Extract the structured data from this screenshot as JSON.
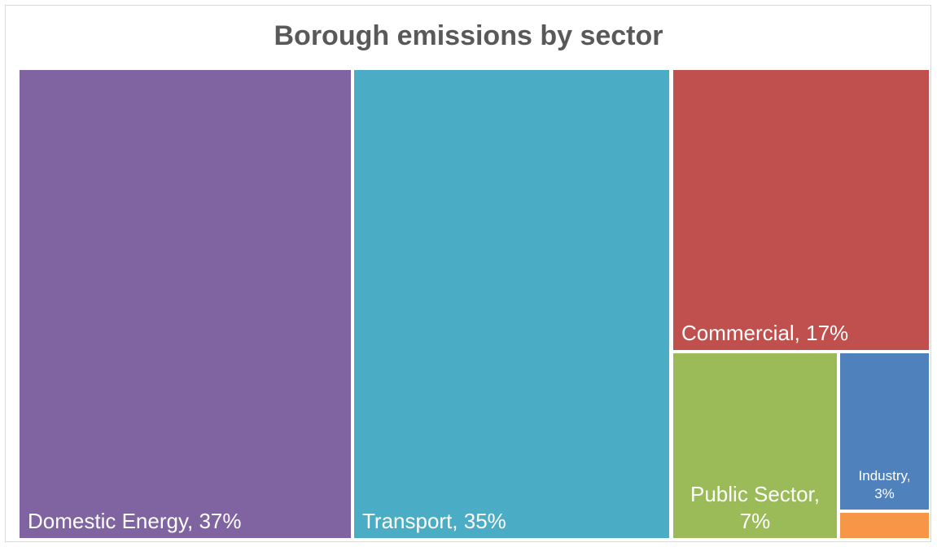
{
  "chart_data": {
    "type": "treemap",
    "title": "Borough emissions by sector",
    "data_labels": true,
    "items": [
      {
        "name": "Domestic Energy",
        "value": 37,
        "label": "Domestic Energy, 37%",
        "color": "#8064a2"
      },
      {
        "name": "Transport",
        "value": 35,
        "label": "Transport, 35%",
        "color": "#4bacc6"
      },
      {
        "name": "Commercial",
        "value": 17,
        "label": "Commercial, 17%",
        "color": "#c0504d"
      },
      {
        "name": "Public Sector",
        "value": 7,
        "label_lines": [
          "Public Sector,",
          "7%"
        ],
        "color": "#9bbb59"
      },
      {
        "name": "Industry",
        "value": 3,
        "label_lines": [
          "Industry,",
          "3%"
        ],
        "color": "#4f81bd"
      },
      {
        "name": "",
        "value": 1,
        "color": "#f79646"
      }
    ]
  }
}
